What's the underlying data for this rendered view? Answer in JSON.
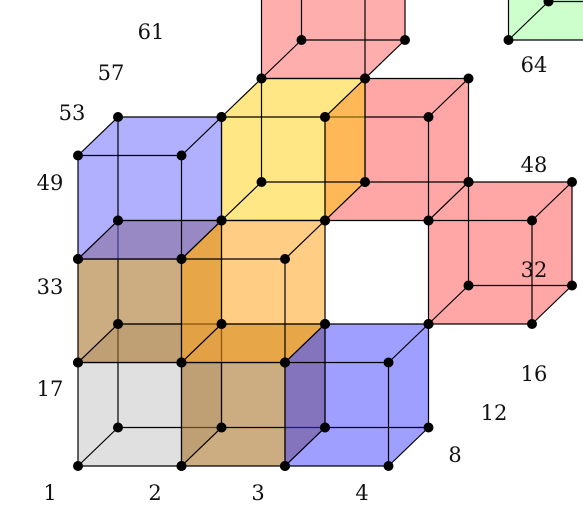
{
  "labels": [
    "1",
    "2",
    "3",
    "4",
    "8",
    "12",
    "16",
    "17",
    "32",
    "33",
    "48",
    "49",
    "53",
    "57",
    "61",
    "64"
  ],
  "cubes": [
    {
      "color": "#bcbcbc",
      "alpha": 0.6
    },
    {
      "color": "#a8732a",
      "alpha": 0.78
    },
    {
      "color": "#3a3aff",
      "alpha": 0.62
    },
    {
      "color": "#ff4a4a",
      "alpha": 0.62
    },
    {
      "color": "#a8732a",
      "alpha": 0.78
    },
    {
      "color": "#ffa21c",
      "alpha": 0.72
    },
    {
      "color": "#ffcc00",
      "alpha": 0.6
    },
    {
      "color": "#ff4a4a",
      "alpha": 0.62
    },
    {
      "color": "#6a6aff",
      "alpha": 0.7
    },
    {
      "color": "#ff5a5a",
      "alpha": 0.62
    },
    {
      "color": "#8cff8c",
      "alpha": 0.55
    }
  ]
}
